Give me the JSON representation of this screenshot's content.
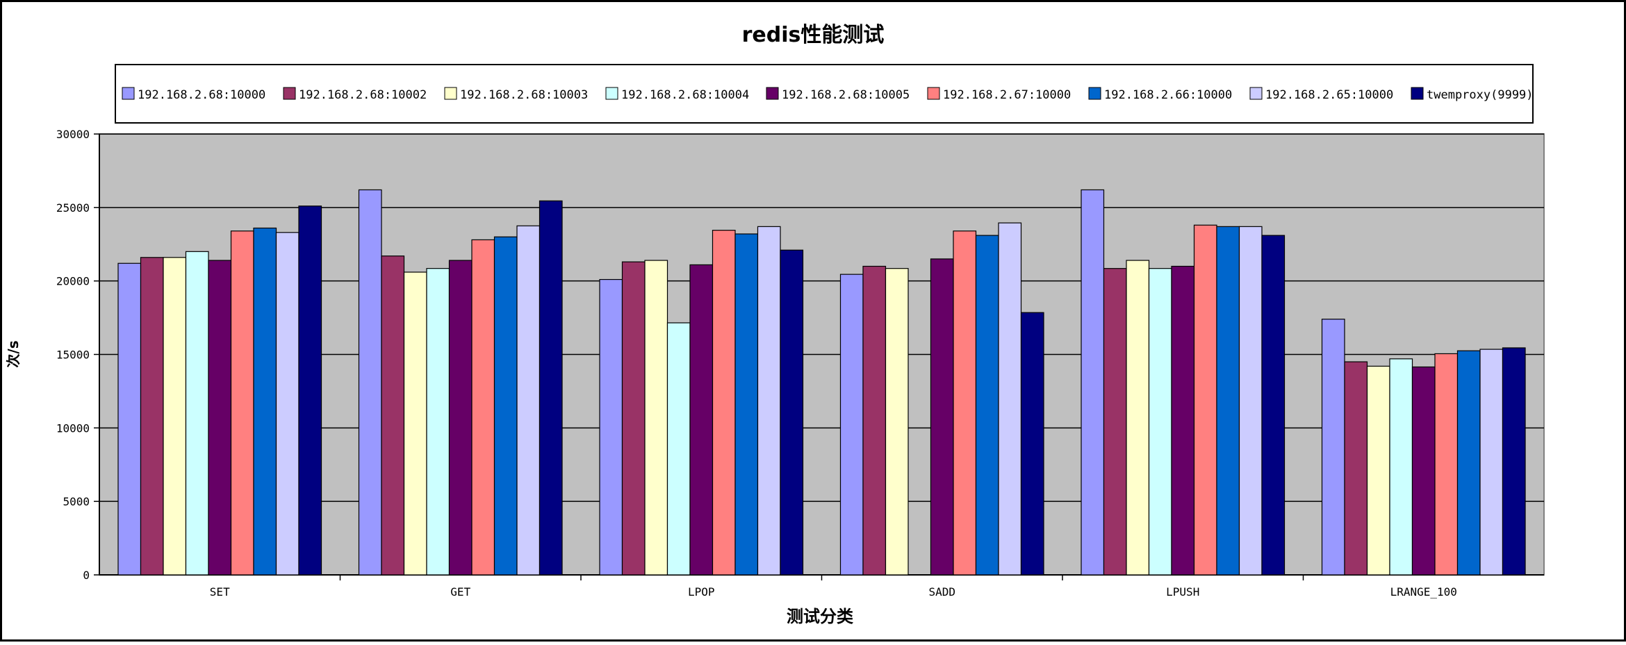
{
  "chart_data": {
    "type": "bar",
    "title": "redis性能测试",
    "xlabel": "测试分类",
    "ylabel": "次/s",
    "ylim": [
      0,
      30000
    ],
    "yticks": [
      0,
      5000,
      10000,
      15000,
      20000,
      25000,
      30000
    ],
    "grid": true,
    "legend_position": "top",
    "categories": [
      "SET",
      "GET",
      "LPOP",
      "SADD",
      "LPUSH",
      "LRANGE_100"
    ],
    "series": [
      {
        "name": "192.168.2.68:10000",
        "color": "#9999ff",
        "values": [
          21200,
          26200,
          20100,
          20450,
          26200,
          17400
        ]
      },
      {
        "name": "192.168.2.68:10002",
        "color": "#993366",
        "values": [
          21600,
          21700,
          21300,
          21000,
          20850,
          14500
        ]
      },
      {
        "name": "192.168.2.68:10003",
        "color": "#ffffcc",
        "values": [
          21600,
          20600,
          21400,
          20850,
          21400,
          14200
        ]
      },
      {
        "name": "192.168.2.68:10004",
        "color": "#ccffff",
        "values": [
          22000,
          20850,
          17150,
          0,
          20850,
          14700
        ]
      },
      {
        "name": "192.168.2.68:10005",
        "color": "#660066",
        "values": [
          21400,
          21400,
          21100,
          21500,
          21000,
          14150
        ]
      },
      {
        "name": "192.168.2.67:10000",
        "color": "#ff8080",
        "values": [
          23400,
          22800,
          23450,
          23400,
          23800,
          15050
        ]
      },
      {
        "name": "192.168.2.66:10000",
        "color": "#0066cc",
        "values": [
          23600,
          23000,
          23200,
          23100,
          23700,
          15250
        ]
      },
      {
        "name": "192.168.2.65:10000",
        "color": "#ccccff",
        "values": [
          23300,
          23750,
          23700,
          23950,
          23700,
          15350
        ]
      },
      {
        "name": "twemproxy(9999)",
        "color": "#000080",
        "values": [
          25100,
          25450,
          22100,
          17850,
          23100,
          15450
        ]
      }
    ]
  }
}
